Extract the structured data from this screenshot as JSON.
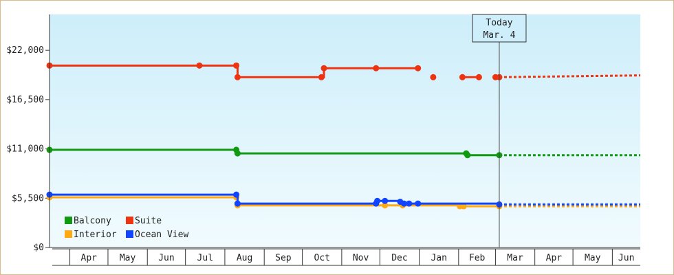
{
  "chart_data": {
    "type": "line",
    "title": "",
    "xlabel": "",
    "ylabel": "",
    "ylim": [
      0,
      26000
    ],
    "y_ticks": [
      {
        "value": 0,
        "label": "$0"
      },
      {
        "value": 5500,
        "label": "$5,500"
      },
      {
        "value": 11000,
        "label": "$11,000"
      },
      {
        "value": 16500,
        "label": "$16,500"
      },
      {
        "value": 22000,
        "label": "$22,000"
      }
    ],
    "x_range": [
      "2015-03-16",
      "2016-06-23"
    ],
    "x_ticks": [
      {
        "start": "2015-04-01",
        "end": "2015-05-01",
        "label": "Apr"
      },
      {
        "start": "2015-05-01",
        "end": "2015-06-01",
        "label": "May"
      },
      {
        "start": "2015-06-01",
        "end": "2015-07-01",
        "label": "Jun"
      },
      {
        "start": "2015-07-01",
        "end": "2015-08-01",
        "label": "Jul"
      },
      {
        "start": "2015-08-01",
        "end": "2015-09-01",
        "label": "Aug"
      },
      {
        "start": "2015-09-01",
        "end": "2015-10-01",
        "label": "Sep"
      },
      {
        "start": "2015-10-01",
        "end": "2015-11-01",
        "label": "Oct"
      },
      {
        "start": "2015-11-01",
        "end": "2015-12-01",
        "label": "Nov"
      },
      {
        "start": "2015-12-01",
        "end": "2016-01-01",
        "label": "Dec"
      },
      {
        "start": "2016-01-01",
        "end": "2016-02-01",
        "label": "Jan"
      },
      {
        "start": "2016-02-01",
        "end": "2016-03-01",
        "label": "Feb"
      },
      {
        "start": "2016-03-01",
        "end": "2016-04-01",
        "label": "Mar"
      },
      {
        "start": "2016-04-01",
        "end": "2016-05-01",
        "label": "Apr"
      },
      {
        "start": "2016-05-01",
        "end": "2016-06-01",
        "label": "May"
      },
      {
        "start": "2016-06-01",
        "end": "2016-06-23",
        "label": "Jun"
      }
    ],
    "today": {
      "date": "2016-03-04",
      "label_line1": "Today",
      "label_line2": "Mar. 4"
    },
    "grid": false,
    "legend_position": "bottom-left",
    "series": [
      {
        "name": "Balcony",
        "color": "#119911",
        "points": [
          {
            "x": "2015-03-16",
            "y": 10900
          },
          {
            "x": "2015-08-10",
            "y": 10900
          },
          {
            "x": "2015-08-11",
            "y": 10500
          },
          {
            "x": "2016-02-07",
            "y": 10500
          },
          {
            "x": "2016-02-08",
            "y": 10300
          },
          {
            "x": "2016-03-04",
            "y": 10300
          }
        ],
        "forecast": [
          {
            "x": "2016-03-04",
            "y": 10300
          },
          {
            "x": "2016-06-23",
            "y": 10300
          }
        ]
      },
      {
        "name": "Suite",
        "color": "#ee3311",
        "points": [
          {
            "x": "2015-03-16",
            "y": 20300
          },
          {
            "x": "2015-07-12",
            "y": 20300
          },
          {
            "x": "2015-08-10",
            "y": 20300
          },
          {
            "x": "2015-08-11",
            "y": 19000
          },
          {
            "x": "2015-10-16",
            "y": 19000
          },
          {
            "x": "2015-10-18",
            "y": 20000
          },
          {
            "x": "2015-11-28",
            "y": 20000
          },
          {
            "x": "2015-12-31",
            "y": 20000
          },
          {
            "x": "2016-01-12",
            "y": 19000
          },
          {
            "x": "2016-02-04",
            "y": 19000
          },
          {
            "x": "2016-02-17",
            "y": 19000
          },
          {
            "x": "2016-03-01",
            "y": 19000
          },
          {
            "x": "2016-03-04",
            "y": 19000
          }
        ],
        "forecast": [
          {
            "x": "2016-03-04",
            "y": 19000
          },
          {
            "x": "2016-06-23",
            "y": 19200
          }
        ]
      },
      {
        "name": "Interior",
        "color": "#ffaa11",
        "points": [
          {
            "x": "2015-03-16",
            "y": 5600
          },
          {
            "x": "2015-08-10",
            "y": 5600
          },
          {
            "x": "2015-08-11",
            "y": 4700
          },
          {
            "x": "2015-12-05",
            "y": 4700
          },
          {
            "x": "2015-12-19",
            "y": 4700
          },
          {
            "x": "2016-02-02",
            "y": 4600
          },
          {
            "x": "2016-02-05",
            "y": 4600
          },
          {
            "x": "2016-03-04",
            "y": 4600
          }
        ],
        "forecast": [
          {
            "x": "2016-03-04",
            "y": 4600
          },
          {
            "x": "2016-06-23",
            "y": 4600
          }
        ]
      },
      {
        "name": "Ocean View",
        "color": "#1144ff",
        "points": [
          {
            "x": "2015-03-16",
            "y": 5900
          },
          {
            "x": "2015-08-10",
            "y": 5900
          },
          {
            "x": "2015-08-11",
            "y": 4900
          },
          {
            "x": "2015-11-28",
            "y": 4900
          },
          {
            "x": "2015-11-29",
            "y": 5200
          },
          {
            "x": "2015-12-05",
            "y": 5200
          },
          {
            "x": "2015-12-17",
            "y": 5100
          },
          {
            "x": "2015-12-20",
            "y": 4900
          },
          {
            "x": "2015-12-24",
            "y": 4900
          },
          {
            "x": "2015-12-31",
            "y": 4900
          },
          {
            "x": "2016-03-04",
            "y": 4800
          }
        ],
        "forecast": [
          {
            "x": "2016-03-04",
            "y": 4800
          },
          {
            "x": "2016-06-23",
            "y": 4800
          }
        ]
      }
    ],
    "legend_order": [
      "Balcony",
      "Suite",
      "Interior",
      "Ocean View"
    ]
  }
}
